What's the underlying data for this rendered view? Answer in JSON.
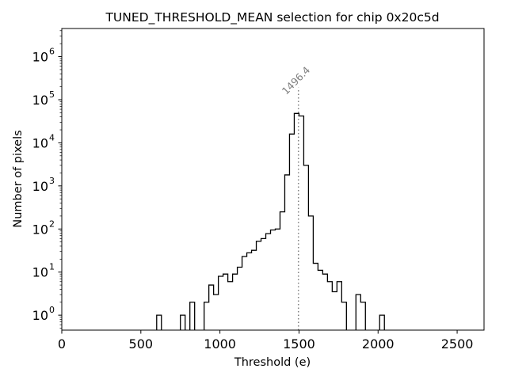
{
  "chart_data": {
    "type": "histogram",
    "title": "TUNED_THRESHOLD_MEAN selection for chip 0x20c5d",
    "xlabel": "Threshold (e)",
    "ylabel": "Number of pixels",
    "xlim": [
      0,
      2670
    ],
    "ylim": [
      0.45,
      4500000
    ],
    "yscale": "log",
    "grid": false,
    "x_ticks": [
      0,
      500,
      1000,
      1500,
      2000,
      2500
    ],
    "x_tick_labels": [
      "0",
      "500",
      "1000",
      "1500",
      "2000",
      "2500"
    ],
    "y_ticks": [
      1,
      10,
      100,
      1000,
      10000,
      100000,
      1000000
    ],
    "y_tick_labels": [
      {
        "base": "10",
        "exp": "0"
      },
      {
        "base": "10",
        "exp": "1"
      },
      {
        "base": "10",
        "exp": "2"
      },
      {
        "base": "10",
        "exp": "3"
      },
      {
        "base": "10",
        "exp": "4"
      },
      {
        "base": "10",
        "exp": "5"
      },
      {
        "base": "10",
        "exp": "6"
      }
    ],
    "bin_width": 30,
    "bins": [
      {
        "x": 600,
        "count": 1
      },
      {
        "x": 750,
        "count": 1
      },
      {
        "x": 810,
        "count": 2
      },
      {
        "x": 900,
        "count": 2
      },
      {
        "x": 930,
        "count": 5
      },
      {
        "x": 960,
        "count": 3
      },
      {
        "x": 990,
        "count": 8
      },
      {
        "x": 1020,
        "count": 9
      },
      {
        "x": 1050,
        "count": 6
      },
      {
        "x": 1080,
        "count": 9
      },
      {
        "x": 1110,
        "count": 13
      },
      {
        "x": 1140,
        "count": 23
      },
      {
        "x": 1170,
        "count": 28
      },
      {
        "x": 1200,
        "count": 32
      },
      {
        "x": 1230,
        "count": 52
      },
      {
        "x": 1260,
        "count": 60
      },
      {
        "x": 1290,
        "count": 78
      },
      {
        "x": 1320,
        "count": 95
      },
      {
        "x": 1350,
        "count": 100
      },
      {
        "x": 1380,
        "count": 250
      },
      {
        "x": 1410,
        "count": 1800
      },
      {
        "x": 1440,
        "count": 16000
      },
      {
        "x": 1470,
        "count": 48000
      },
      {
        "x": 1500,
        "count": 42000
      },
      {
        "x": 1530,
        "count": 3000
      },
      {
        "x": 1560,
        "count": 200
      },
      {
        "x": 1590,
        "count": 16
      },
      {
        "x": 1620,
        "count": 11
      },
      {
        "x": 1650,
        "count": 9
      },
      {
        "x": 1680,
        "count": 6
      },
      {
        "x": 1710,
        "count": 3.5
      },
      {
        "x": 1740,
        "count": 6
      },
      {
        "x": 1770,
        "count": 2
      },
      {
        "x": 1860,
        "count": 3
      },
      {
        "x": 1890,
        "count": 2
      },
      {
        "x": 2010,
        "count": 1
      }
    ],
    "marker": {
      "x": 1496.4,
      "label": "1496.4",
      "y_top": 190000,
      "color": "#808080",
      "style": "dotted"
    },
    "colors": {
      "histogram": "#000000",
      "marker": "#808080"
    }
  }
}
